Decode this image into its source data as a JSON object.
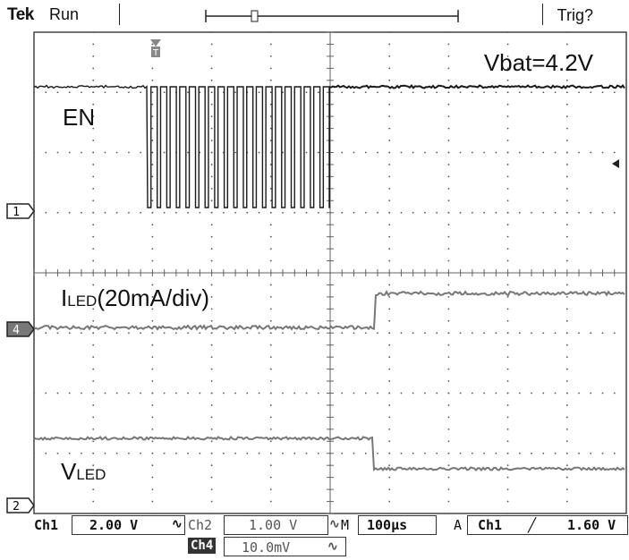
{
  "header": {
    "brand": "Tek",
    "status": "Run",
    "trigger_state": "Trig?"
  },
  "annotation": {
    "supply": "Vbat=4.2V"
  },
  "traces": {
    "en_label": "EN",
    "iled_label_main": "I",
    "iled_label_sub": "LED",
    "iled_label_rest": "(20mA/div)",
    "vled_label_main": "V",
    "vled_label_sub": "LED"
  },
  "markers": {
    "ch1": "1",
    "ch4": "4",
    "ch2": "2",
    "trigger_t": "T"
  },
  "readouts": {
    "ch1_name": "Ch1",
    "ch1_scale": "2.00 V",
    "ch2_name": "Ch2",
    "ch2_scale": "1.00 V",
    "timebase_label": "M",
    "timebase": "100µs",
    "trigger_mode": "A",
    "trigger_source": "Ch1",
    "trigger_slope": "╱",
    "trigger_level": "1.60 V",
    "ch4_name": "Ch4",
    "ch4_scale": "10.0mV",
    "bw_icon": "bandwidth-limit-icon"
  },
  "colors": {
    "trace": "#1a1a1a",
    "trace_gray": "#777777",
    "grid": "#555555"
  }
}
